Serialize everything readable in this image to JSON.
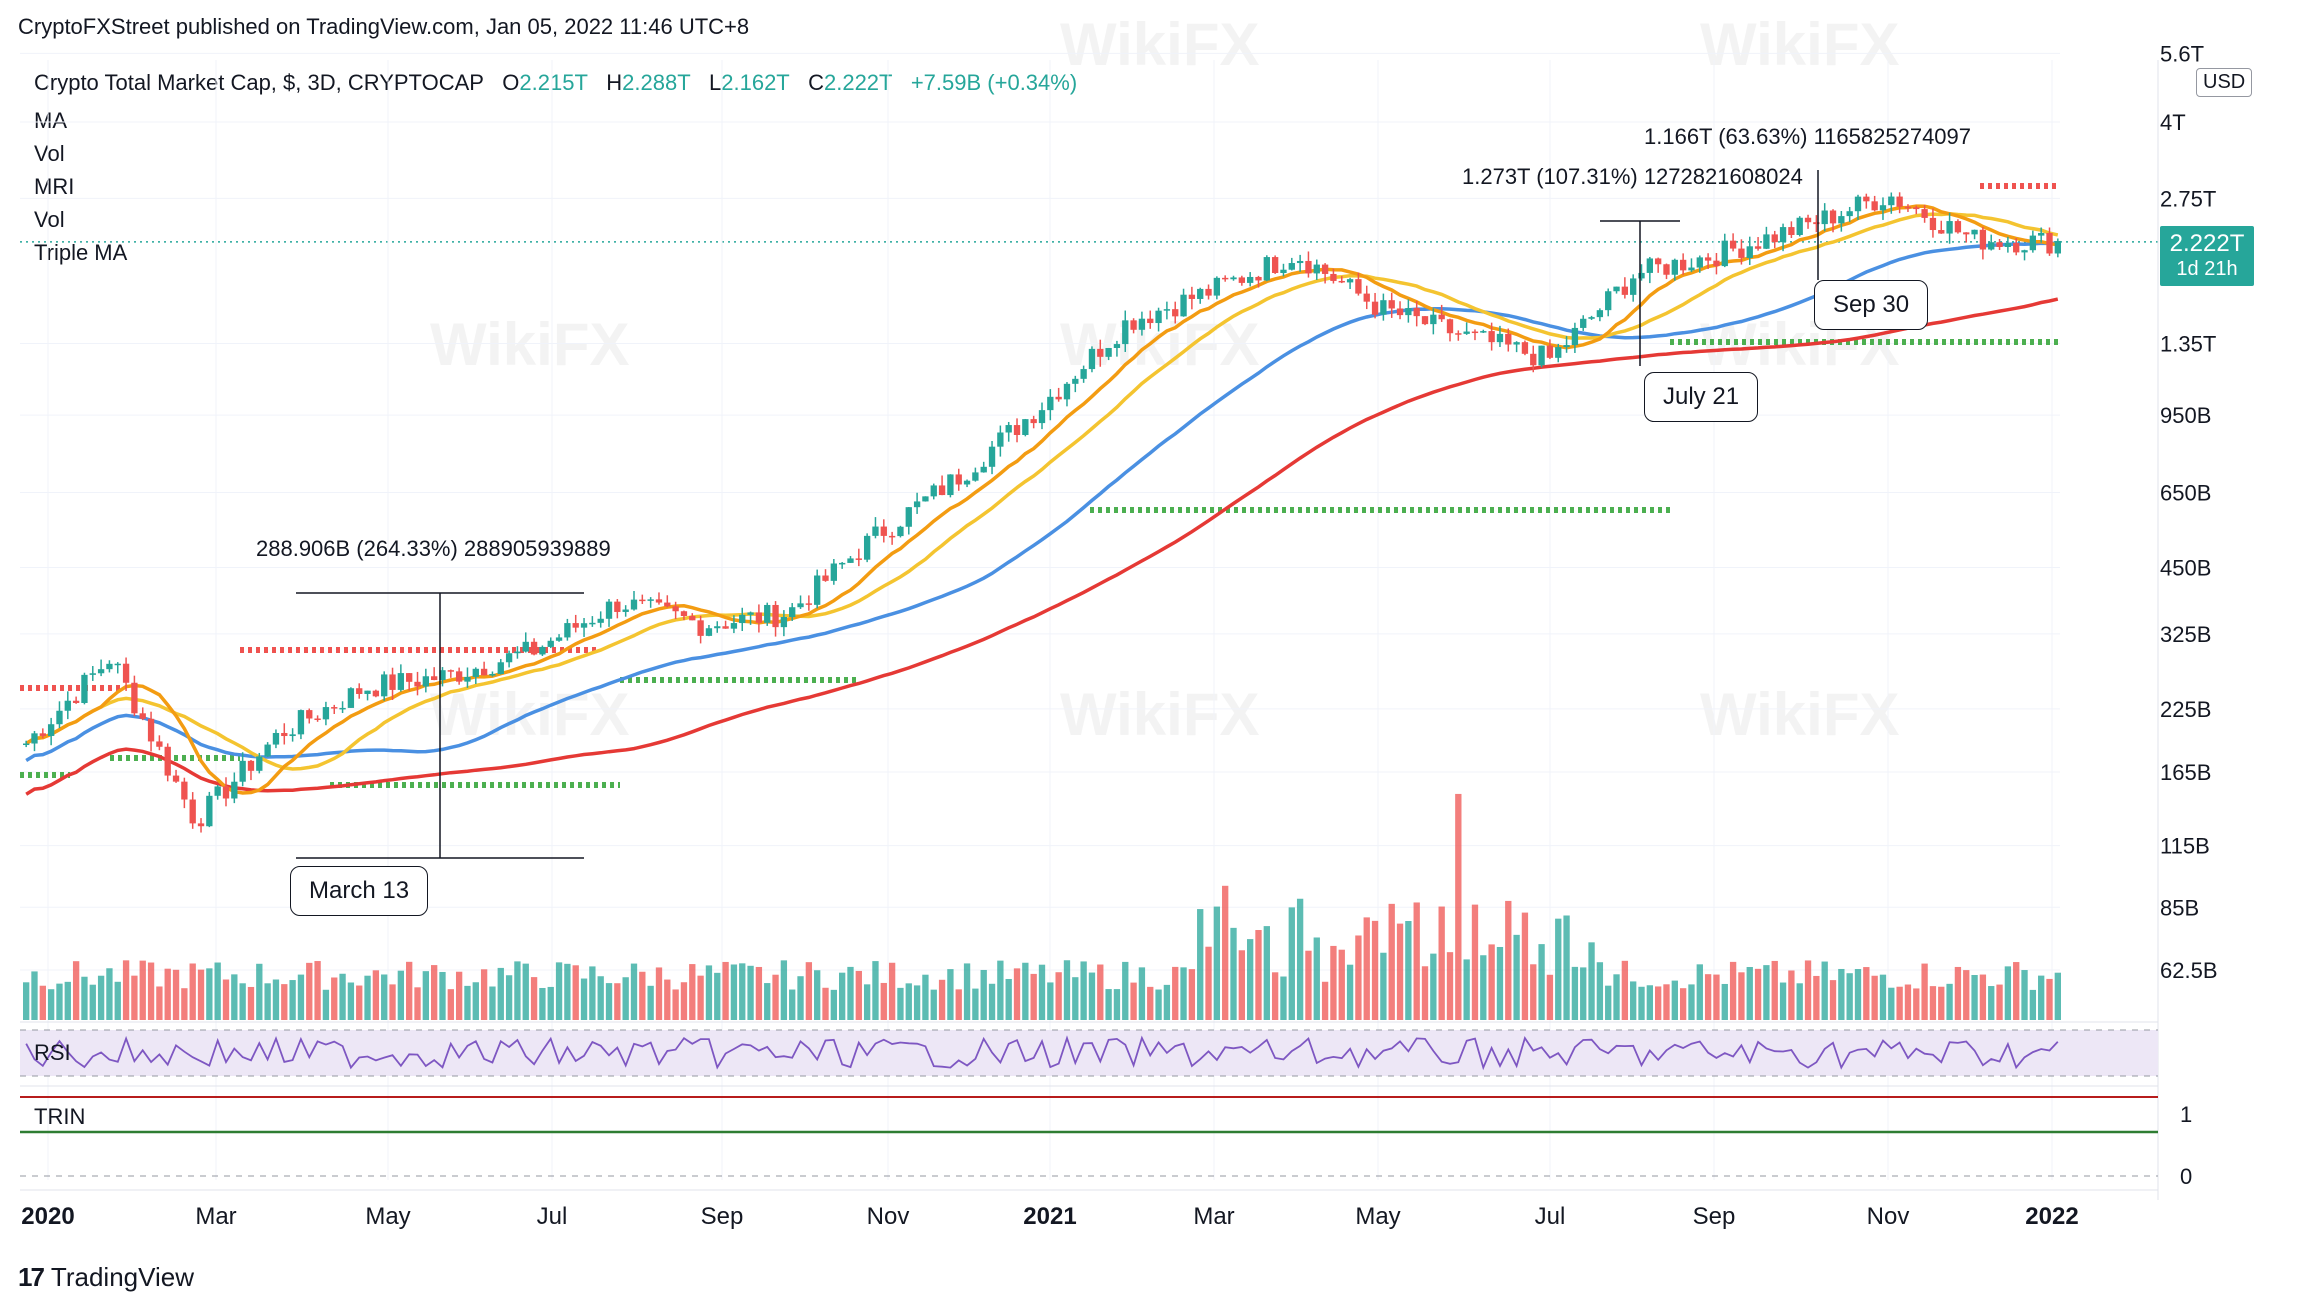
{
  "header": {
    "published": "CryptoFXStreet published on TradingView.com, Jan 05, 2022 11:46 UTC+8"
  },
  "symbol": {
    "name": "Crypto Total Market Cap, $, 3D, CRYPTOCAP",
    "o_label": "O",
    "o": "2.215T",
    "h_label": "H",
    "h": "2.288T",
    "l_label": "L",
    "l": "2.162T",
    "c_label": "C",
    "c": "2.222T",
    "change": "+7.59B (+0.34%)"
  },
  "indicators": [
    "MA",
    "Vol",
    "MRI",
    "Vol",
    "Triple MA"
  ],
  "rsi_label": "RSI",
  "trin_label": "TRIN",
  "currency": "USD",
  "price_tag": {
    "value": "2.222T",
    "countdown": "1d 21h"
  },
  "footer": {
    "brand": "TradingView",
    "logo": "tradingview-logo-icon"
  },
  "watermark": "WikiFX",
  "colors": {
    "up": "#26a69a",
    "down": "#ef5350",
    "ma_blue": "#4a90e2",
    "ma_red": "#e53935",
    "ma_orange": "#f39c12",
    "ma_yellow": "#f4c430",
    "rsi": "#7e57c2",
    "rsi_band": "#ede7f6",
    "trin_red": "#b71c1c",
    "trin_green": "#2e7d32"
  },
  "annotations": {
    "measure1": "288.906B (264.33%) 288905939889",
    "measure2": "1.273T (107.31%) 1272821608024",
    "measure3": "1.166T (63.63%) 1165825274097",
    "callout_march": "March 13",
    "callout_july": "July 21",
    "callout_sep": "Sep 30"
  },
  "chart_data": {
    "type": "candlestick",
    "title": "Crypto Total Market Cap, $, 3D, CRYPTOCAP",
    "scale": "log",
    "y_ticks": [
      "5.6T",
      "4T",
      "2.75T",
      "2.222T",
      "1.35T",
      "950B",
      "650B",
      "450B",
      "325B",
      "225B",
      "165B",
      "115B",
      "85B",
      "62.5B"
    ],
    "y_tick_values_billions": [
      5600,
      4000,
      2750,
      2222,
      1350,
      950,
      650,
      450,
      325,
      225,
      165,
      115,
      85,
      62.5
    ],
    "x_ticks": [
      "2020",
      "Mar",
      "May",
      "Jul",
      "Sep",
      "Nov",
      "2021",
      "Mar",
      "May",
      "Jul",
      "Sep",
      "Nov",
      "2022"
    ],
    "rsi_ticks": [],
    "trin_ticks": [
      "1",
      "0"
    ],
    "approx_close_billions": [
      {
        "date": "2020-01",
        "close": 190
      },
      {
        "date": "2020-02",
        "close": 290
      },
      {
        "date": "2020-03",
        "close": 130
      },
      {
        "date": "2020-04",
        "close": 200
      },
      {
        "date": "2020-05",
        "close": 250
      },
      {
        "date": "2020-06",
        "close": 265
      },
      {
        "date": "2020-07",
        "close": 300
      },
      {
        "date": "2020-08",
        "close": 380
      },
      {
        "date": "2020-09",
        "close": 340
      },
      {
        "date": "2020-10",
        "close": 360
      },
      {
        "date": "2020-11",
        "close": 520
      },
      {
        "date": "2020-12",
        "close": 700
      },
      {
        "date": "2021-01",
        "close": 1000
      },
      {
        "date": "2021-02",
        "close": 1500
      },
      {
        "date": "2021-03",
        "close": 1750
      },
      {
        "date": "2021-04",
        "close": 2100
      },
      {
        "date": "2021-05",
        "close": 1600
      },
      {
        "date": "2021-06",
        "close": 1400
      },
      {
        "date": "2021-07",
        "close": 1250
      },
      {
        "date": "2021-08",
        "close": 1900
      },
      {
        "date": "2021-09",
        "close": 2100
      },
      {
        "date": "2021-10",
        "close": 2400
      },
      {
        "date": "2021-11",
        "close": 2800
      },
      {
        "date": "2021-12",
        "close": 2250
      },
      {
        "date": "2022-01",
        "close": 2222
      }
    ],
    "moving_averages": [
      {
        "color": "#e53935"
      },
      {
        "color": "#4a90e2"
      },
      {
        "color": "#f4c430"
      },
      {
        "color": "#f39c12"
      }
    ]
  }
}
